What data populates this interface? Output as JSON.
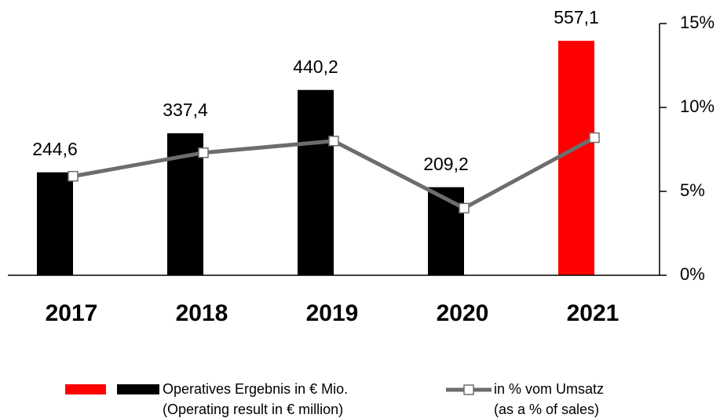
{
  "chart_data": {
    "type": "bar",
    "categories": [
      "2017",
      "2018",
      "2019",
      "2020",
      "2021"
    ],
    "series": [
      {
        "name": "Operatives Ergebnis in € Mio.",
        "name_en": "(Operating result in € million)",
        "type": "bar",
        "colors": [
          "#000000",
          "#000000",
          "#000000",
          "#000000",
          "#ff0000"
        ],
        "values": [
          244.6,
          337.4,
          440.2,
          209.2,
          557.1
        ],
        "value_labels": [
          "244,6",
          "337,4",
          "440,2",
          "209,2",
          "557,1"
        ]
      },
      {
        "name": "in % vom Umsatz",
        "name_en": "(as a % of sales)",
        "type": "line",
        "axis": "y2",
        "color": "#6d6d6d",
        "values": [
          5.9,
          7.3,
          8.0,
          4.0,
          8.2
        ]
      }
    ],
    "ylim": [
      0,
      598
    ],
    "y2lim": [
      0,
      15
    ],
    "y2ticks": [
      {
        "value": 0,
        "label": "0%"
      },
      {
        "value": 5,
        "label": "5%"
      },
      {
        "value": 10,
        "label": "10%"
      },
      {
        "value": 15,
        "label": "15%"
      }
    ]
  }
}
